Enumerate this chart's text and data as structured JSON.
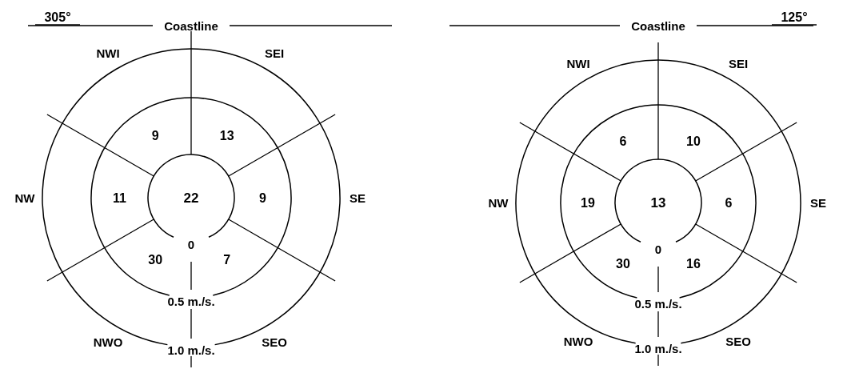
{
  "chart_data": [
    {
      "type": "other",
      "title": "305°",
      "subtitle": "Coastline",
      "categories": [
        "NWI",
        "SEI",
        "SE",
        "SEO",
        "NWO",
        "NW"
      ],
      "values": [
        9,
        13,
        9,
        7,
        30,
        11
      ],
      "data_labels": true,
      "annotations": [
        "22",
        "0",
        "0.5 m./s.",
        "1.0 m./s."
      ]
    },
    {
      "type": "other",
      "title": "125°",
      "subtitle": "Coastline",
      "categories": [
        "NWI",
        "SEI",
        "SE",
        "SEO",
        "NWO",
        "NW"
      ],
      "values": [
        6,
        10,
        6,
        16,
        30,
        19
      ],
      "data_labels": true,
      "annotations": [
        "13",
        "0",
        "0.5 m./s.",
        "1.0 m./s."
      ]
    }
  ]
}
